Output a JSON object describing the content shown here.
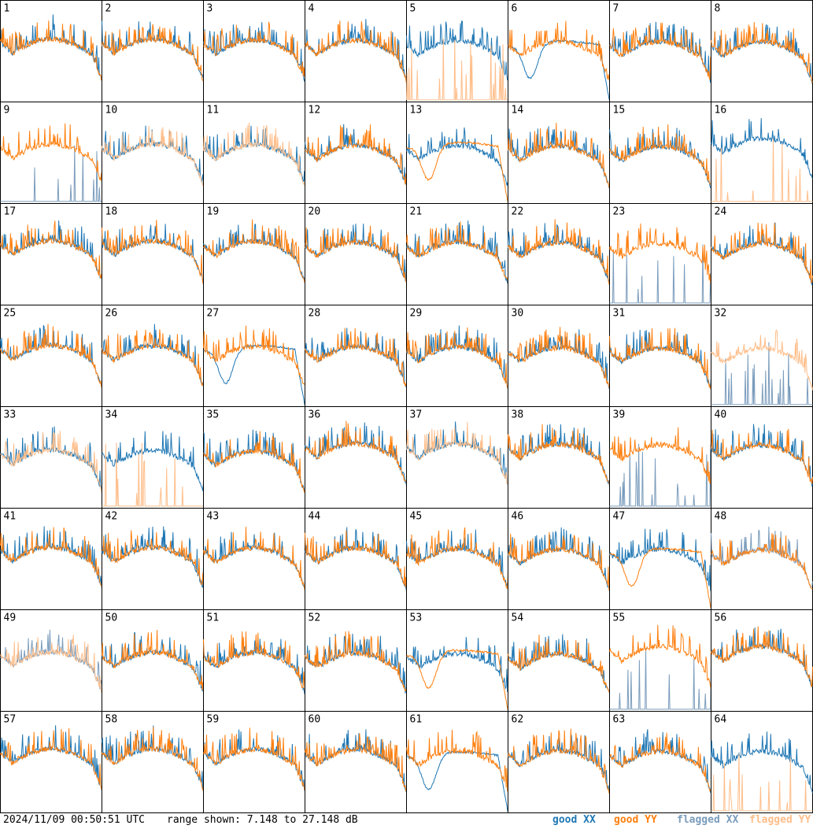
{
  "chart_data": {
    "type": "line",
    "layout": "8x8 grid of small spectra panels",
    "panel_labels": [
      "1",
      "2",
      "3",
      "4",
      "5",
      "6",
      "7",
      "8",
      "9",
      "10",
      "11",
      "12",
      "13",
      "14",
      "15",
      "16",
      "17",
      "18",
      "19",
      "20",
      "21",
      "22",
      "23",
      "24",
      "25",
      "26",
      "27",
      "28",
      "29",
      "30",
      "31",
      "32",
      "33",
      "34",
      "35",
      "36",
      "37",
      "38",
      "39",
      "40",
      "41",
      "42",
      "43",
      "44",
      "45",
      "46",
      "47",
      "48",
      "49",
      "50",
      "51",
      "52",
      "53",
      "54",
      "55",
      "56",
      "57",
      "58",
      "59",
      "60",
      "61",
      "62",
      "63",
      "64"
    ],
    "ylim": [
      7.148,
      27.148
    ],
    "series_styles": {
      "good_xx": "#1f77b4",
      "good_yy": "#ff7f0e",
      "flagged_xx": "#7a9cbc",
      "flagged_yy": "#ffbe8a"
    },
    "panels": {
      "5": {
        "xx": "good",
        "yy": "flagged-spikes"
      },
      "6": {
        "xx": "dip",
        "yy": "good"
      },
      "9": {
        "xx": "flagged-spikes",
        "yy": "good"
      },
      "10": {
        "xx": "good",
        "yy": "flagged"
      },
      "11": {
        "xx": "good",
        "yy": "flagged"
      },
      "13": {
        "xx": "good",
        "yy": "dip"
      },
      "16": {
        "xx": "good",
        "yy": "flagged-spikes"
      },
      "23": {
        "xx": "flagged-spikes",
        "yy": "good"
      },
      "27": {
        "xx": "dip",
        "yy": "good"
      },
      "32": {
        "xx": "flagged-spikes",
        "yy": "flagged"
      },
      "33": {
        "xx": "good",
        "yy": "flagged"
      },
      "34": {
        "xx": "good",
        "yy": "flagged-spikes"
      },
      "37": {
        "xx": "good",
        "yy": "flagged"
      },
      "39": {
        "xx": "flagged-spikes",
        "yy": "good"
      },
      "47": {
        "xx": "good",
        "yy": "dip"
      },
      "48": {
        "xx": "flagged",
        "yy": "good"
      },
      "49": {
        "xx": "flagged",
        "yy": "flagged"
      },
      "53": {
        "xx": "good",
        "yy": "dip"
      },
      "55": {
        "xx": "flagged-spikes",
        "yy": "good"
      },
      "61": {
        "xx": "dip",
        "yy": "good"
      },
      "64": {
        "xx": "good",
        "yy": "flagged-spikes"
      }
    }
  },
  "footer": {
    "timestamp": "2024/11/09 00:50:51 UTC",
    "range": "range shown: 7.148 to 27.148 dB"
  },
  "legend": [
    {
      "label": "good XX",
      "color": "#1f77b4"
    },
    {
      "label": "good YY",
      "color": "#ff7f0e"
    },
    {
      "label": "flagged XX",
      "color": "#7a9cbc"
    },
    {
      "label": "flagged YY",
      "color": "#ffbe8a"
    }
  ]
}
